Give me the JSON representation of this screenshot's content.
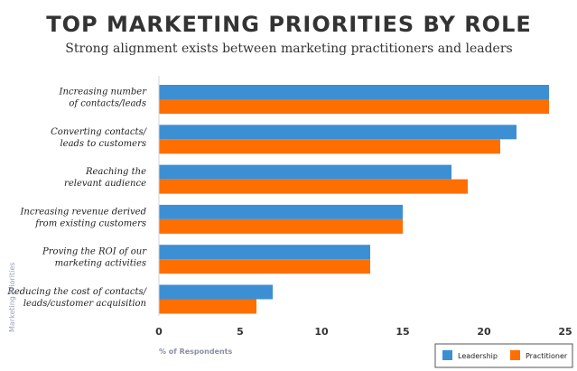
{
  "chart_data": {
    "type": "bar",
    "orientation": "horizontal",
    "title": "TOP MARKETING PRIORITIES BY ROLE",
    "subtitle": "Strong alignment exists between marketing practitioners and leaders",
    "xlabel": "% of Respondents",
    "ylabel": "Marketing Priorities",
    "xlim": [
      0,
      25
    ],
    "xticks": [
      "0",
      "5",
      "10",
      "15",
      "20",
      "25"
    ],
    "grid": false,
    "legend_position": "bottom-right",
    "categories": [
      [
        "Increasing number",
        "of contacts/leads"
      ],
      [
        "Converting contacts/",
        "leads to customers"
      ],
      [
        "Reaching the",
        "relevant audience"
      ],
      [
        "Increasing revenue derived",
        "from existing customers"
      ],
      [
        "Proving the ROI of our",
        "marketing activities"
      ],
      [
        "Reducing the cost of contacts/",
        "leads/customer acquisition"
      ]
    ],
    "series": [
      {
        "name": "Leadership",
        "color": "#3d8fd4",
        "values": [
          24,
          22,
          18,
          15,
          13,
          7
        ]
      },
      {
        "name": "Practitioner",
        "color": "#ff6f00",
        "values": [
          24,
          21,
          19,
          15,
          13,
          6
        ]
      }
    ]
  }
}
